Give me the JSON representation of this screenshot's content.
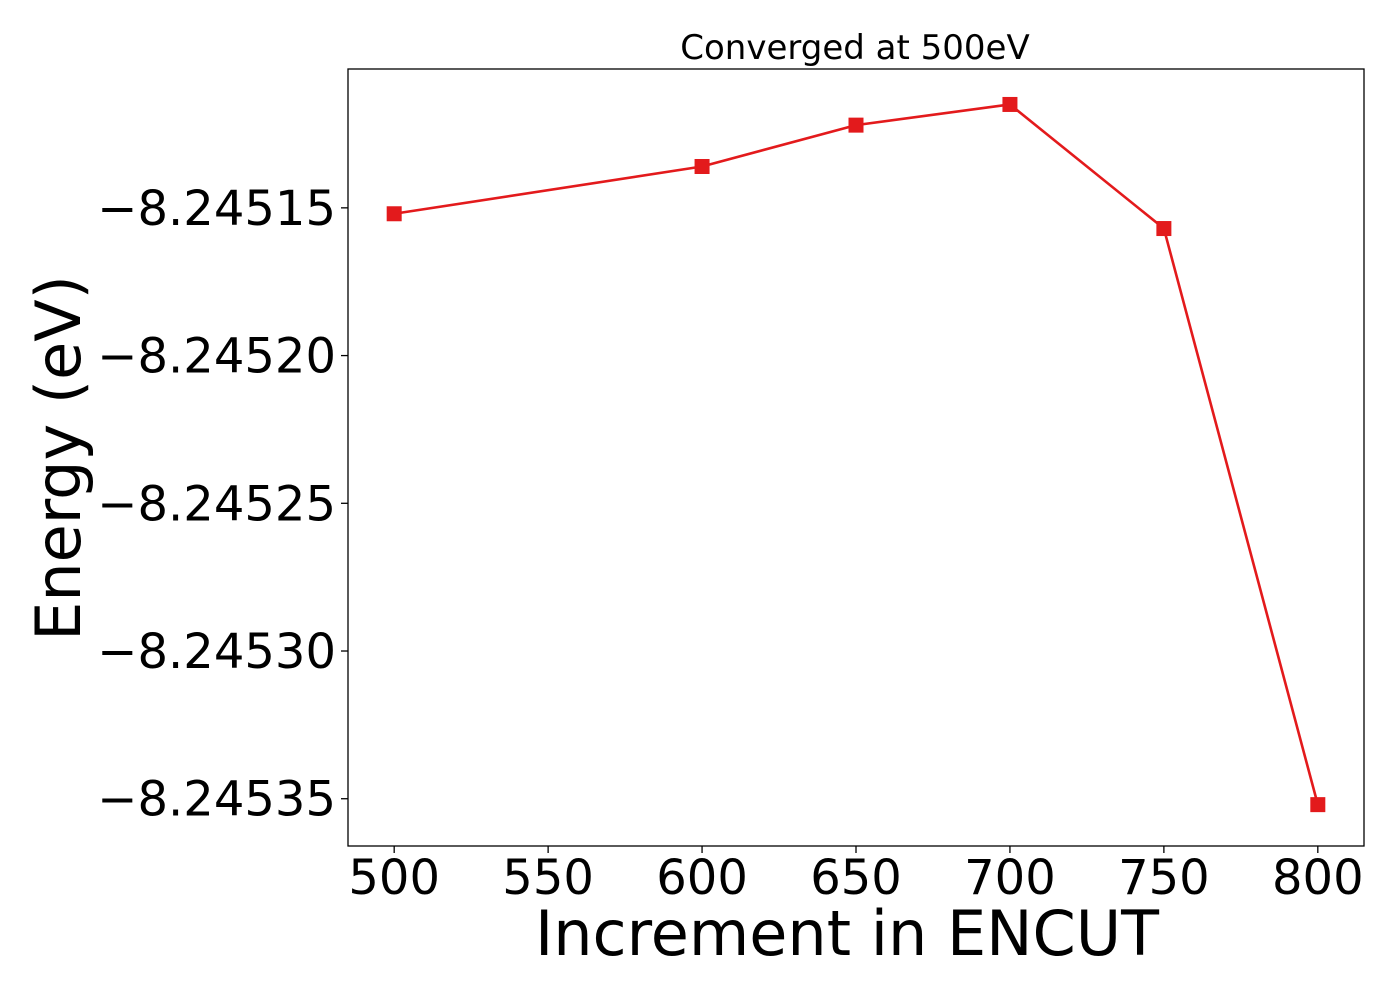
{
  "chart_data": {
    "type": "line",
    "title": "Converged at 500eV",
    "xlabel": "Increment in ENCUT",
    "ylabel": "Energy (eV)",
    "x": [
      500,
      600,
      650,
      700,
      750,
      800
    ],
    "series": [
      {
        "values": [
          -8.245152,
          -8.245136,
          -8.245122,
          -8.245115,
          -8.245157,
          -8.245352
        ],
        "color": "#e31a1c",
        "marker": "square"
      }
    ],
    "xlim": [
      485,
      815
    ],
    "ylim": [
      -8.245366,
      -8.245103
    ],
    "xticks": [
      500,
      550,
      600,
      650,
      700,
      750,
      800
    ],
    "xtick_labels": [
      "500",
      "550",
      "600",
      "650",
      "700",
      "750",
      "800"
    ],
    "yticks": [
      -8.24535,
      -8.2453,
      -8.24525,
      -8.2452,
      -8.24515
    ],
    "ytick_labels": [
      "−8.24535",
      "−8.24530",
      "−8.24525",
      "−8.24520",
      "−8.24515"
    ],
    "grid": false,
    "legend": "none"
  }
}
